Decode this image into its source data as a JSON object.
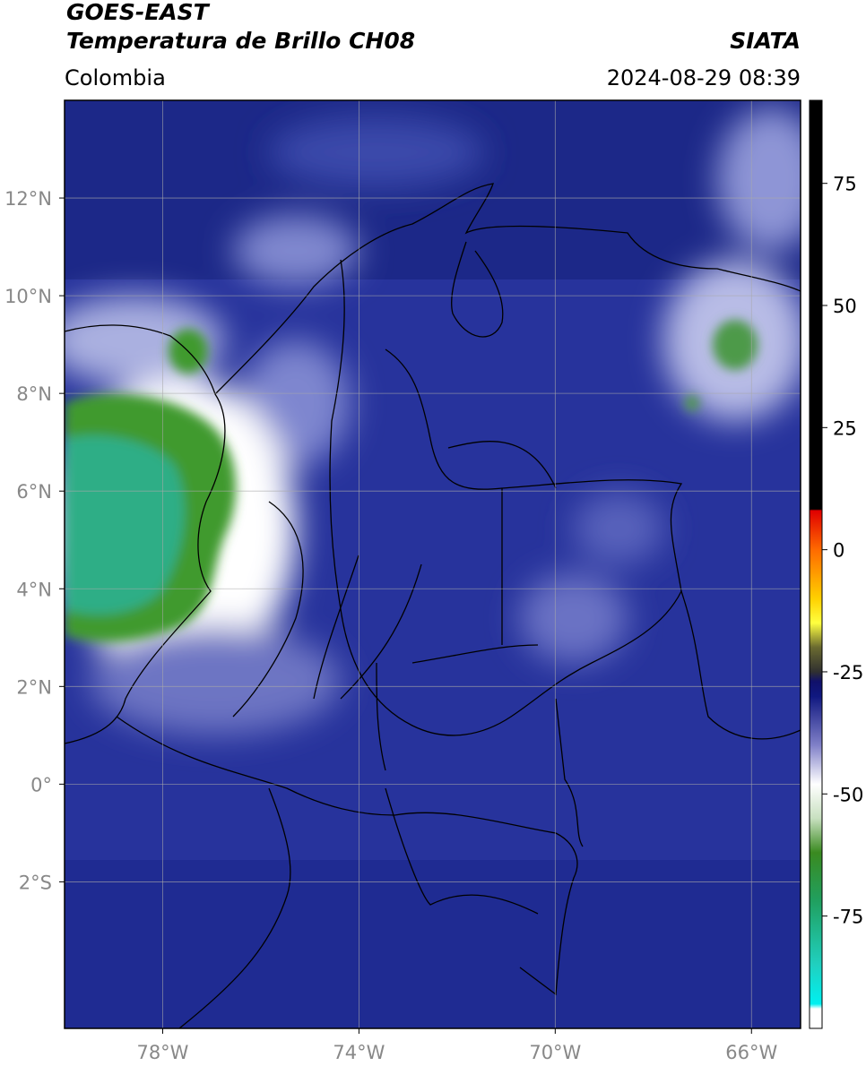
{
  "header": {
    "satellite": "GOES-EAST",
    "product": "Temperatura de Brillo CH08",
    "institution": "SIATA",
    "region": "Colombia",
    "datetime": "2024-08-29 08:39"
  },
  "map": {
    "xlim": [
      -80,
      -65
    ],
    "ylim": [
      -5,
      14
    ],
    "xticks": [
      {
        "value": -78,
        "label": "78°W"
      },
      {
        "value": -74,
        "label": "74°W"
      },
      {
        "value": -70,
        "label": "70°W"
      },
      {
        "value": -66,
        "label": "66°W"
      }
    ],
    "yticks": [
      {
        "value": 12,
        "label": "12°N"
      },
      {
        "value": 10,
        "label": "10°N"
      },
      {
        "value": 8,
        "label": "8°N"
      },
      {
        "value": 6,
        "label": "6°N"
      },
      {
        "value": 4,
        "label": "4°N"
      },
      {
        "value": 2,
        "label": "2°N"
      },
      {
        "value": 0,
        "label": "0°"
      },
      {
        "value": -2,
        "label": "2°S"
      }
    ],
    "grid": true
  },
  "colorbar": {
    "lim": [
      -98,
      92
    ],
    "ticks": [
      75,
      50,
      25,
      0,
      -25,
      -50,
      -75
    ],
    "stops": [
      {
        "value": 92,
        "color": "#000000"
      },
      {
        "value": 8.3,
        "color": "#000000"
      },
      {
        "value": 8,
        "color": "#e00000"
      },
      {
        "value": 0,
        "color": "#ff6a00"
      },
      {
        "value": -10,
        "color": "#ffd000"
      },
      {
        "value": -15,
        "color": "#ffff40"
      },
      {
        "value": -20,
        "color": "#6a6a30"
      },
      {
        "value": -25,
        "color": "#303030"
      },
      {
        "value": -27,
        "color": "#10106a"
      },
      {
        "value": -30,
        "color": "#101880"
      },
      {
        "value": -40,
        "color": "#8080c8"
      },
      {
        "value": -48,
        "color": "#ffffff"
      },
      {
        "value": -55,
        "color": "#c8e0c0"
      },
      {
        "value": -62,
        "color": "#3a8a20"
      },
      {
        "value": -72,
        "color": "#20a060"
      },
      {
        "value": -85,
        "color": "#20d0c0"
      },
      {
        "value": -93,
        "color": "#00f0f0"
      },
      {
        "value": -94,
        "color": "#ffffff"
      },
      {
        "value": -98,
        "color": "#ffffff"
      }
    ]
  }
}
